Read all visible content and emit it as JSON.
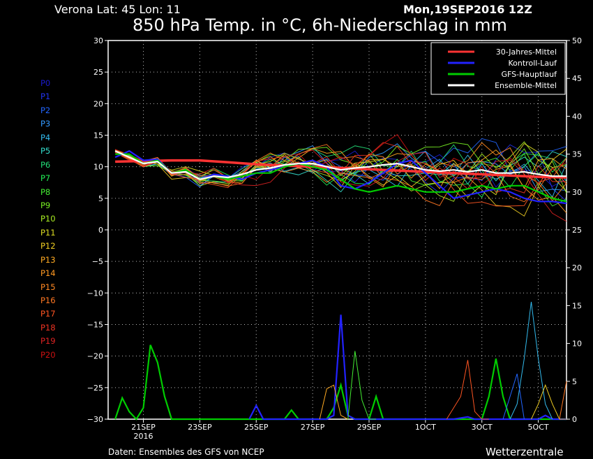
{
  "header": {
    "location": "Verona   Lat: 45 Lon: 11",
    "run": "Mon,19SEP2016 12Z",
    "title": "850 hPa Temp. in °C, 6h-Niederschlag in mm"
  },
  "footer": {
    "source": "Daten: Ensembles des GFS von NCEP",
    "brand": "Wetterzentrale"
  },
  "colors": {
    "background": "#000000",
    "climate": "#ff3333",
    "control": "#2222ff",
    "gfs": "#00cc00",
    "ensemble_mean": "#ffffff"
  },
  "chart_data": {
    "type": "line",
    "title": "850 hPa Temp. in °C, 6h-Niederschlag in mm",
    "x_ticks": [
      "21SEP",
      "23SEP",
      "25SEP",
      "27SEP",
      "29SEP",
      "1OCT",
      "3OCT",
      "5OCT"
    ],
    "x_tick_sub": "2016",
    "x_range_days": [
      -0.25,
      16
    ],
    "ylim_left": [
      -30,
      30
    ],
    "y_ticks_left": [
      30,
      25,
      20,
      15,
      10,
      5,
      0,
      -5,
      -10,
      -15,
      -20,
      -25,
      -30
    ],
    "ylim_right": [
      0,
      50
    ],
    "y_ticks_right": [
      50,
      45,
      40,
      35,
      30,
      25,
      20,
      15,
      10,
      5,
      0
    ],
    "grid": true,
    "legend_position": "top-right",
    "legend": [
      {
        "name": "30-Jahres-Mittel",
        "color": "#ff3333"
      },
      {
        "name": "Kontroll-Lauf",
        "color": "#2222ff"
      },
      {
        "name": "GFS-Hauptlauf",
        "color": "#00cc00"
      },
      {
        "name": "Ensemble-Mittel",
        "color": "#ffffff"
      }
    ],
    "members": [
      {
        "name": "P0",
        "color": "#1a1acc"
      },
      {
        "name": "P1",
        "color": "#2233ee"
      },
      {
        "name": "P2",
        "color": "#2266ff"
      },
      {
        "name": "P3",
        "color": "#3399ff"
      },
      {
        "name": "P4",
        "color": "#33bbee"
      },
      {
        "name": "P5",
        "color": "#33ddcc"
      },
      {
        "name": "P6",
        "color": "#22dd77"
      },
      {
        "name": "P7",
        "color": "#22ee55"
      },
      {
        "name": "P8",
        "color": "#44ee33"
      },
      {
        "name": "P9",
        "color": "#77ee22"
      },
      {
        "name": "P10",
        "color": "#aaee22"
      },
      {
        "name": "P11",
        "color": "#dddd22"
      },
      {
        "name": "P12",
        "color": "#eecc22"
      },
      {
        "name": "P13",
        "color": "#ffaa22"
      },
      {
        "name": "P14",
        "color": "#ff9922"
      },
      {
        "name": "P15",
        "color": "#ff8822"
      },
      {
        "name": "P16",
        "color": "#ff7722"
      },
      {
        "name": "P17",
        "color": "#ff5522"
      },
      {
        "name": "P18",
        "color": "#ee3322"
      },
      {
        "name": "P19",
        "color": "#dd2222"
      },
      {
        "name": "P20",
        "color": "#cc1111"
      }
    ],
    "series_temperature": [
      {
        "name": "30-Jahres-Mittel",
        "color": "#ff3333",
        "x": [
          0,
          1,
          2,
          3,
          4,
          5,
          6,
          7,
          8,
          9,
          10,
          11,
          12,
          13,
          14,
          15,
          16
        ],
        "values": [
          10.8,
          10.9,
          11.0,
          11.0,
          10.7,
          10.4,
          10.2,
          10.0,
          9.8,
          9.6,
          9.4,
          9.2,
          9.0,
          8.8,
          8.6,
          8.4,
          8.3
        ]
      },
      {
        "name": "Kontroll-Lauf",
        "color": "#2222ff",
        "x": [
          0,
          0.5,
          1,
          1.5,
          2,
          2.5,
          3,
          3.5,
          4,
          4.5,
          5,
          5.5,
          6,
          6.5,
          7,
          7.5,
          8,
          8.5,
          9,
          9.5,
          10,
          10.5,
          11,
          11.5,
          12,
          12.5,
          13,
          13.5,
          14,
          14.5,
          15,
          15.5,
          16
        ],
        "values": [
          11.5,
          12.5,
          11.0,
          11.2,
          9.0,
          9.2,
          8.0,
          8.8,
          8.5,
          8.0,
          9.0,
          9.5,
          10.0,
          10.5,
          11.0,
          10.0,
          7.0,
          6.5,
          7.5,
          9.0,
          10.5,
          11.0,
          9.0,
          7.0,
          5.0,
          5.5,
          6.0,
          6.5,
          6.0,
          5.0,
          4.5,
          4.5,
          4.2
        ]
      },
      {
        "name": "GFS-Hauptlauf",
        "color": "#00cc00",
        "x": [
          0,
          0.5,
          1,
          1.5,
          2,
          2.5,
          3,
          3.5,
          4,
          4.5,
          5,
          5.5,
          6,
          6.5,
          7,
          7.5,
          8,
          8.5,
          9,
          9.5,
          10,
          10.5,
          11,
          11.5,
          12,
          12.5,
          13,
          13.5,
          14,
          14.5,
          15,
          15.5,
          16
        ],
        "values": [
          12.0,
          12.0,
          10.5,
          11.0,
          9.0,
          9.5,
          8.0,
          8.5,
          8.0,
          8.5,
          9.0,
          9.0,
          10.0,
          10.5,
          10.0,
          9.5,
          8.0,
          6.5,
          6.0,
          6.5,
          7.0,
          6.5,
          6.0,
          6.0,
          6.0,
          6.5,
          7.0,
          6.5,
          7.0,
          7.0,
          6.0,
          5.0,
          4.5
        ]
      },
      {
        "name": "Ensemble-Mittel",
        "color": "#ffffff",
        "x": [
          0,
          0.5,
          1,
          1.5,
          2,
          2.5,
          3,
          3.5,
          4,
          4.5,
          5,
          5.5,
          6,
          6.5,
          7,
          7.5,
          8,
          8.5,
          9,
          9.5,
          10,
          10.5,
          11,
          11.5,
          12,
          12.5,
          13,
          13.5,
          14,
          14.5,
          15,
          15.5,
          16
        ],
        "values": [
          12.5,
          11.5,
          10.5,
          10.8,
          9.0,
          9.2,
          8.0,
          8.5,
          8.3,
          8.8,
          9.5,
          9.8,
          10.3,
          10.5,
          10.5,
          10.0,
          9.5,
          9.8,
          10.0,
          10.3,
          10.5,
          10.0,
          9.5,
          9.3,
          9.5,
          9.2,
          9.5,
          9.0,
          9.0,
          9.2,
          8.8,
          8.5,
          8.5
        ]
      }
    ],
    "series_precip": [
      {
        "name": "GFS-Hauptlauf",
        "color": "#00cc00",
        "x": [
          0,
          0.25,
          0.5,
          0.75,
          1,
          1.25,
          1.5,
          1.75,
          2,
          2.25,
          2.5,
          6,
          6.25,
          6.5,
          7.5,
          7.75,
          8,
          8.25,
          8.5,
          9,
          9.25,
          9.5,
          13,
          13.25,
          13.5,
          13.75,
          14,
          16
        ],
        "values": [
          0,
          2.8,
          1.0,
          0,
          1.5,
          9.8,
          7.5,
          3.0,
          0,
          0,
          0,
          0,
          1.2,
          0,
          0,
          1.5,
          4.5,
          0.5,
          0,
          0,
          3.0,
          0,
          0,
          3.0,
          8.0,
          3.0,
          0,
          0
        ]
      },
      {
        "name": "Kontroll-Lauf",
        "color": "#2222ff",
        "x": [
          4.75,
          5,
          5.25,
          7.5,
          7.75,
          8,
          8.25,
          8.5,
          12,
          12.5,
          12.75,
          13,
          15,
          15.25,
          15.5,
          16
        ],
        "values": [
          0,
          1.8,
          0,
          0,
          0.5,
          13.8,
          0.5,
          0,
          0,
          0.3,
          0,
          0,
          0,
          0.5,
          0,
          0
        ]
      },
      {
        "name": "P4",
        "color": "#33bbee",
        "x": [
          14,
          14.25,
          14.5,
          14.75,
          15,
          15.25,
          15.5
        ],
        "values": [
          0,
          2.0,
          8.0,
          15.5,
          8.0,
          2.0,
          0
        ]
      },
      {
        "name": "P17",
        "color": "#ff5522",
        "x": [
          11.75,
          12.25,
          12.5,
          12.75,
          13.0,
          13.25
        ],
        "values": [
          0,
          3.0,
          7.8,
          1.0,
          0,
          0
        ]
      },
      {
        "name": "P13",
        "color": "#ffaa22",
        "x": [
          7.25,
          7.5,
          7.75,
          8.0,
          8.25
        ],
        "values": [
          0,
          4.0,
          4.5,
          0.5,
          0
        ]
      },
      {
        "name": "P8",
        "color": "#44ee33",
        "x": [
          8.25,
          8.5,
          8.75,
          9.0,
          9.25
        ],
        "values": [
          0,
          9.0,
          2.5,
          0,
          0
        ]
      },
      {
        "name": "P2",
        "color": "#2266ff",
        "x": [
          13.75,
          14.0,
          14.25,
          14.5
        ],
        "values": [
          0,
          3.0,
          6.0,
          0
        ]
      },
      {
        "name": "P12",
        "color": "#eecc22",
        "x": [
          14.75,
          15.0,
          15.25,
          15.5,
          15.75,
          16.0
        ],
        "values": [
          0,
          2.0,
          4.5,
          2.0,
          0,
          0
        ]
      },
      {
        "name": "P16",
        "color": "#ff7722",
        "x": [
          15.75,
          16.0
        ],
        "values": [
          0,
          5.0
        ]
      }
    ]
  }
}
